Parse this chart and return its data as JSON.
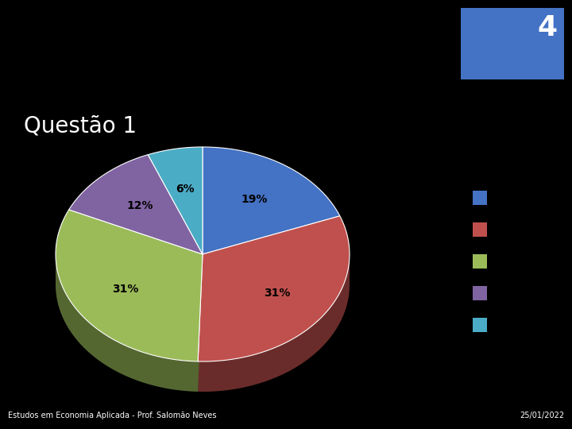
{
  "title": "Questão 1",
  "number": "4",
  "slices": [
    19,
    31,
    31,
    12,
    6
  ],
  "labels": [
    "19%",
    "31%",
    "31%",
    "12%",
    "6%"
  ],
  "colors": [
    "#4472C4",
    "#C0504D",
    "#9BBB59",
    "#8064A2",
    "#4BACC6"
  ],
  "legend_colors": [
    "#4472C4",
    "#C0504D",
    "#9BBB59",
    "#8064A2",
    "#4BACC6"
  ],
  "background_color": "#000000",
  "text_color": "#FFFFFF",
  "footer_left": "Estudos em Economia Aplicada - Prof. Salomão Neves",
  "footer_right": "25/01/2022",
  "number_box_color": "#4472C4",
  "label_fontsize": 10,
  "title_fontsize": 20,
  "footer_fontsize": 7
}
